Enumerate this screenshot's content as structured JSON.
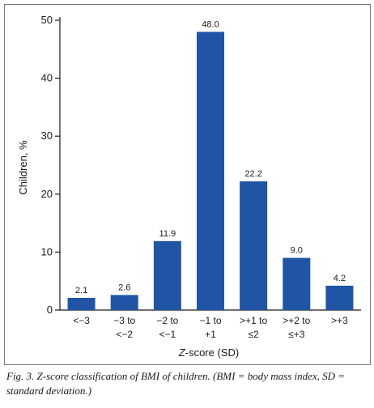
{
  "chart_data": {
    "type": "bar",
    "categories": [
      [
        "<−3"
      ],
      [
        "−3 to",
        "<−2"
      ],
      [
        "−2 to",
        "<−1"
      ],
      [
        "−1 to",
        "+1"
      ],
      [
        ">+1 to",
        "≤2"
      ],
      [
        ">+2 to",
        "≤+3"
      ],
      [
        ">+3"
      ]
    ],
    "values": [
      2.1,
      2.6,
      11.9,
      48.0,
      22.2,
      9.0,
      4.2
    ],
    "value_labels": [
      "2.1",
      "2.6",
      "11.9",
      "48.0",
      "22.2",
      "9.0",
      "4.2"
    ],
    "ylim": [
      0,
      50
    ],
    "yticks": [
      0,
      10,
      20,
      30,
      40,
      50
    ],
    "ylabel": "Children, %",
    "xlabel_italic": "Z",
    "xlabel_rest": "-score (SD)",
    "bar_color": "#1f55a4",
    "grid": false
  },
  "caption": "Fig. 3. Z-score classification of BMI of children. (BMI = body mass index, SD = standard deviation.)"
}
